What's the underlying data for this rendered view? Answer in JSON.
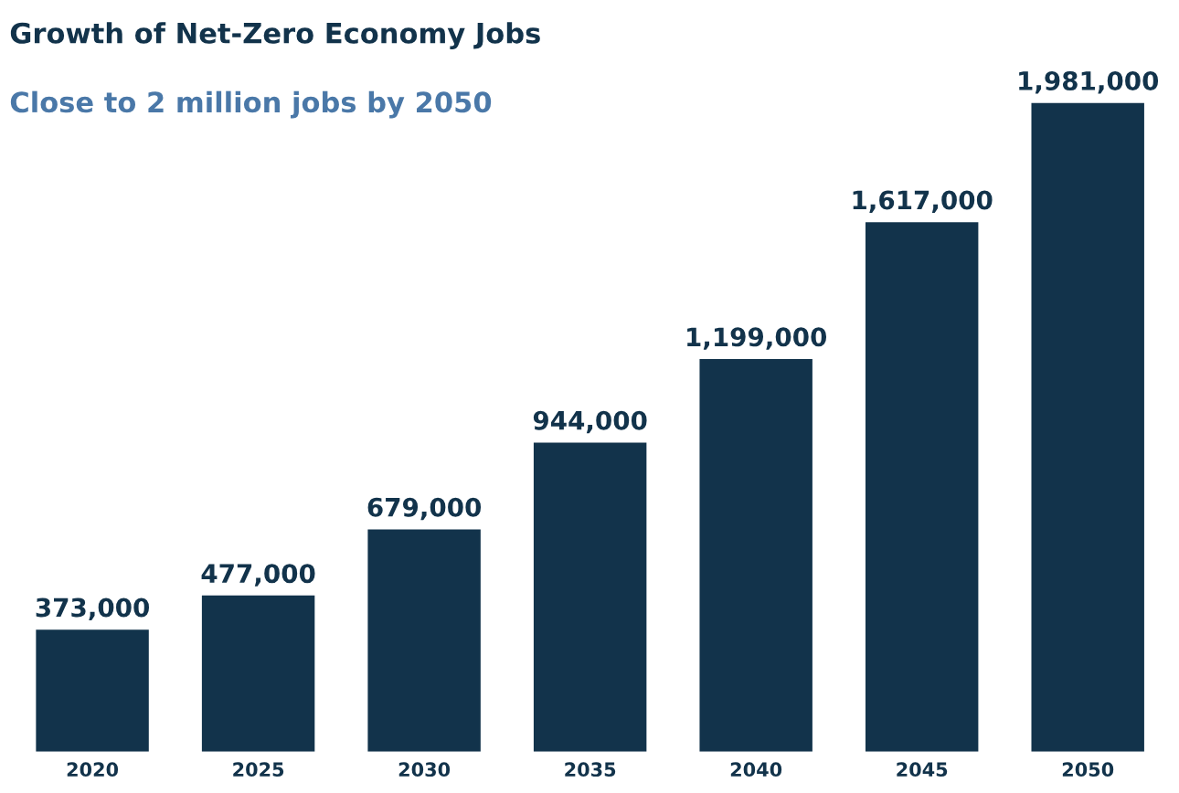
{
  "chart_data": {
    "type": "bar",
    "title": "Growth of Net-Zero Economy Jobs",
    "subtitle": "Close to 2 million jobs by 2050",
    "categories": [
      "2020",
      "2025",
      "2030",
      "2035",
      "2040",
      "2045",
      "2050"
    ],
    "values": [
      373000,
      477000,
      679000,
      944000,
      1199000,
      1617000,
      1981000
    ],
    "value_labels": [
      "373,000",
      "477,000",
      "679,000",
      "944,000",
      "1,199,000",
      "1,617,000",
      "1,981,000"
    ],
    "color": "#12334b"
  }
}
